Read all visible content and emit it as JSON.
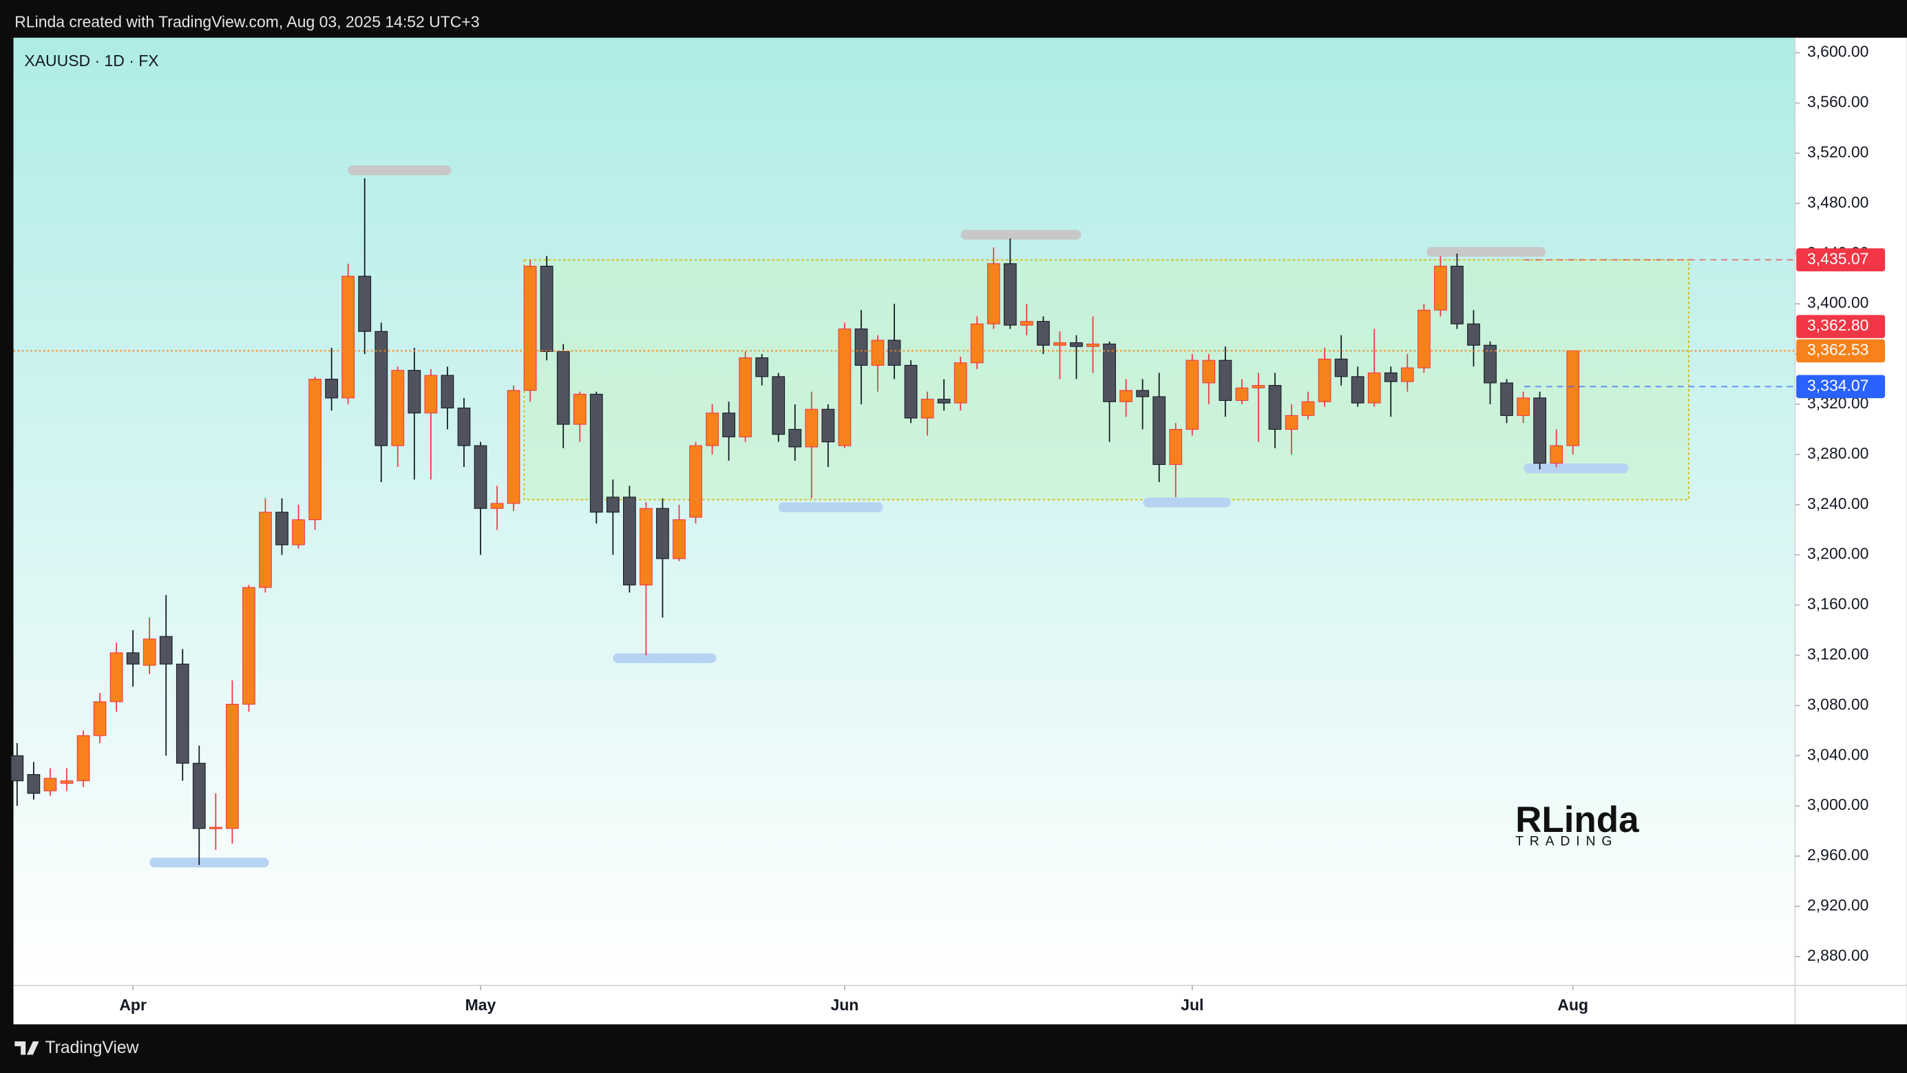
{
  "header": {
    "attribution": "RLinda created with TradingView.com, Aug 03, 2025 14:52 UTC+3"
  },
  "footer": {
    "brand": "TradingView"
  },
  "watermark": {
    "name": "RLinda",
    "tag": "TRADING"
  },
  "chart_data": {
    "type": "candlestick",
    "title": "XAUUSD · 1D · FX",
    "up_color": "#f7821b",
    "down_color": "#50535e",
    "up_wick_color": "#f23645",
    "down_wick_color": "#131722",
    "open": [
      3040,
      3025,
      3012,
      3018,
      3020,
      3056,
      3083,
      3122,
      3112,
      3135,
      3113,
      3034,
      2982,
      2982,
      3081,
      3174,
      3234,
      3208,
      3228,
      3340,
      3325,
      3422,
      3378,
      3287,
      3347,
      3313,
      3343,
      3317,
      3287,
      3237,
      3241,
      3331,
      3430,
      3362,
      3304,
      3328,
      3246,
      3246,
      3176,
      3237,
      3197,
      3230,
      3287,
      3313,
      3294,
      3357,
      3342,
      3300,
      3286,
      3316,
      3287,
      3380,
      3351,
      3371,
      3351,
      3309,
      3324,
      3321,
      3353,
      3384,
      3432,
      3383,
      3386,
      3367,
      3369,
      3366,
      3368,
      3322,
      3331,
      3326,
      3272,
      3300,
      3337,
      3355,
      3323,
      3333,
      3335,
      3300,
      3311,
      3322,
      3356,
      3342,
      3321,
      3345,
      3338,
      3349,
      3395,
      3430,
      3384,
      3367,
      3337,
      3311,
      3325,
      3273,
      3287
    ],
    "high": [
      3050,
      3035,
      3030,
      3030,
      3060,
      3090,
      3130,
      3140,
      3150,
      3168,
      3125,
      3048,
      3010,
      3100,
      3176,
      3245,
      3245,
      3240,
      3342,
      3365,
      3432,
      3500,
      3385,
      3350,
      3365,
      3348,
      3350,
      3325,
      3290,
      3255,
      3335,
      3435,
      3438,
      3368,
      3330,
      3330,
      3260,
      3255,
      3242,
      3245,
      3240,
      3290,
      3320,
      3322,
      3362,
      3360,
      3345,
      3320,
      3330,
      3320,
      3385,
      3395,
      3375,
      3400,
      3355,
      3330,
      3340,
      3358,
      3390,
      3445,
      3452,
      3400,
      3390,
      3378,
      3375,
      3390,
      3370,
      3340,
      3340,
      3345,
      3305,
      3360,
      3360,
      3366,
      3340,
      3345,
      3345,
      3320,
      3330,
      3365,
      3375,
      3350,
      3380,
      3350,
      3360,
      3400,
      3438,
      3440,
      3395,
      3370,
      3340,
      3330,
      3330,
      3300,
      3363
    ],
    "low": [
      3000,
      3005,
      3008,
      3012,
      3015,
      3050,
      3075,
      3095,
      3105,
      3040,
      3020,
      2953,
      2965,
      2970,
      3075,
      3170,
      3200,
      3205,
      3220,
      3315,
      3320,
      3360,
      3258,
      3270,
      3260,
      3260,
      3300,
      3270,
      3200,
      3220,
      3235,
      3322,
      3355,
      3285,
      3290,
      3225,
      3200,
      3170,
      3120,
      3150,
      3195,
      3225,
      3280,
      3275,
      3290,
      3335,
      3290,
      3275,
      3245,
      3270,
      3285,
      3320,
      3330,
      3340,
      3305,
      3295,
      3315,
      3315,
      3348,
      3380,
      3380,
      3375,
      3360,
      3340,
      3340,
      3345,
      3290,
      3310,
      3300,
      3258,
      3246,
      3295,
      3320,
      3310,
      3320,
      3290,
      3285,
      3280,
      3308,
      3318,
      3335,
      3318,
      3318,
      3310,
      3330,
      3345,
      3390,
      3380,
      3350,
      3320,
      3305,
      3305,
      3268,
      3270,
      3280
    ],
    "close": [
      3020,
      3010,
      3022,
      3020,
      3056,
      3083,
      3122,
      3113,
      3133,
      3113,
      3034,
      2982,
      2983,
      3081,
      3174,
      3234,
      3208,
      3228,
      3340,
      3325,
      3422,
      3378,
      3287,
      3347,
      3313,
      3343,
      3317,
      3287,
      3237,
      3241,
      3331,
      3430,
      3362,
      3304,
      3328,
      3234,
      3234,
      3176,
      3237,
      3197,
      3228,
      3287,
      3313,
      3294,
      3357,
      3342,
      3296,
      3286,
      3316,
      3290,
      3380,
      3351,
      3371,
      3351,
      3309,
      3324,
      3321,
      3353,
      3384,
      3432,
      3383,
      3386,
      3367,
      3369,
      3366,
      3368,
      3322,
      3331,
      3326,
      3272,
      3300,
      3355,
      3355,
      3323,
      3333,
      3335,
      3300,
      3311,
      3322,
      3356,
      3342,
      3321,
      3345,
      3338,
      3349,
      3395,
      3430,
      3384,
      3367,
      3337,
      3311,
      3325,
      3273,
      3287,
      3362.53
    ],
    "xticks": [
      {
        "value": 7,
        "label": "Apr"
      },
      {
        "value": 28,
        "label": "May"
      },
      {
        "value": 50,
        "label": "Jun"
      },
      {
        "value": 71,
        "label": "Jul"
      },
      {
        "value": 94,
        "label": "Aug"
      }
    ],
    "ylim": [
      2857,
      3612
    ],
    "yticks": [
      {
        "value": 2880,
        "label": "2,880.00"
      },
      {
        "value": 2920,
        "label": "2,920.00"
      },
      {
        "value": 2960,
        "label": "2,960.00"
      },
      {
        "value": 3000,
        "label": "3,000.00"
      },
      {
        "value": 3040,
        "label": "3,040.00"
      },
      {
        "value": 3080,
        "label": "3,080.00"
      },
      {
        "value": 3120,
        "label": "3,120.00"
      },
      {
        "value": 3160,
        "label": "3,160.00"
      },
      {
        "value": 3200,
        "label": "3,200.00"
      },
      {
        "value": 3240,
        "label": "3,240.00"
      },
      {
        "value": 3280,
        "label": "3,280.00"
      },
      {
        "value": 3320,
        "label": "3,320.00"
      },
      {
        "value": 3360,
        "label": "3,360.00"
      },
      {
        "value": 3400,
        "label": "3,400.00"
      },
      {
        "value": 3440,
        "label": "3,440.00"
      },
      {
        "value": 3480,
        "label": "3,480.00"
      },
      {
        "value": 3520,
        "label": "3,520.00"
      },
      {
        "value": 3560,
        "label": "3,560.00"
      },
      {
        "value": 3600,
        "label": "3,600.00"
      }
    ],
    "range_zone": {
      "from": 31,
      "to": 101,
      "top": 3435,
      "bottom": 3244,
      "color": "#c9f2c9"
    },
    "price_labels": [
      {
        "value": 3435.07,
        "label": "3,435.07",
        "color": "#f23645",
        "style": "dashed"
      },
      {
        "value": 3362.8,
        "label": "3,362.80",
        "color": "#f23645",
        "style": "none"
      },
      {
        "value": 3362.53,
        "label": "3,362.53",
        "color": "#f7821b",
        "style": "dotted"
      },
      {
        "value": 3334.07,
        "label": "3,334.07",
        "color": "#2962ff",
        "style": "dashed"
      }
    ]
  }
}
